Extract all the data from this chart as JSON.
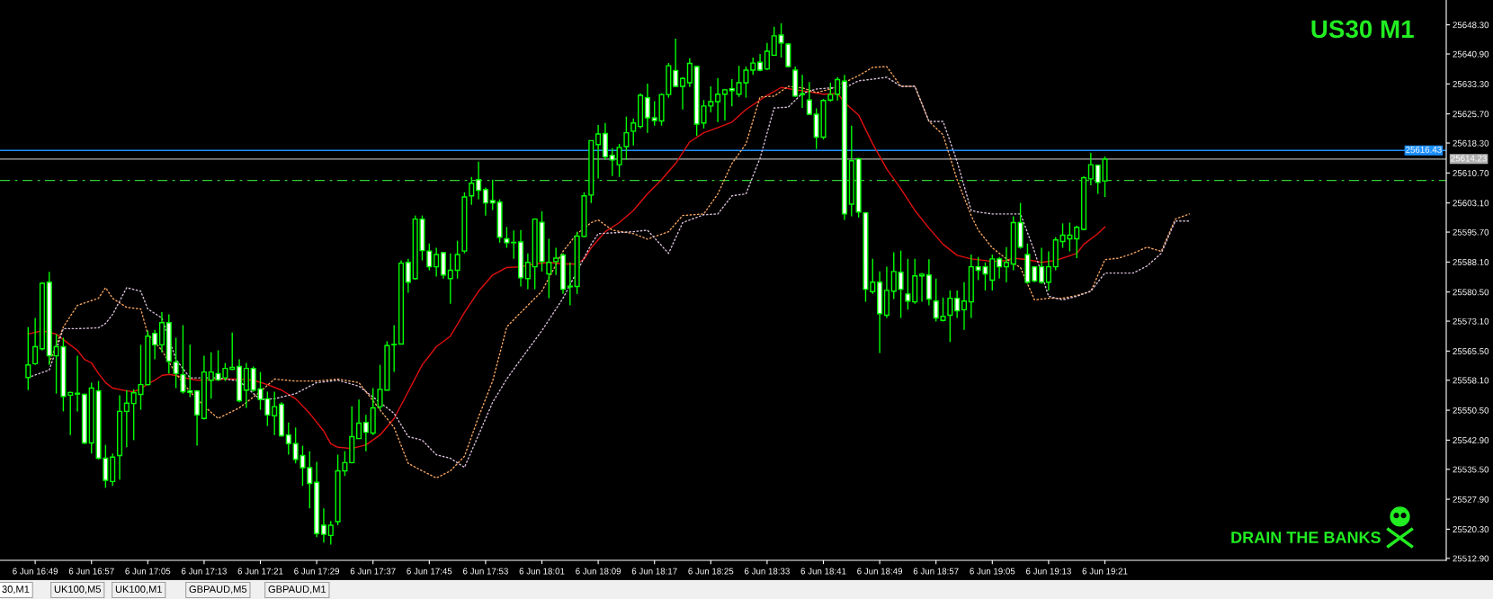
{
  "chart_data": {
    "type": "candlestick",
    "title": "US30 M1",
    "annotations": [
      "DRAIN THE BANKS",
      "30,M1",
      "UK100,M5",
      "UK100,M1",
      "GBPAUD,M5",
      "GBPAUD,M1"
    ],
    "categories": [
      null,
      "6 Jun 16:49",
      null,
      null,
      null,
      null,
      null,
      null,
      null,
      "6 Jun 16:57",
      null,
      null,
      null,
      null,
      null,
      null,
      null,
      "6 Jun 17:05",
      null,
      null,
      null,
      null,
      null,
      null,
      null,
      "6 Jun 17:13",
      null,
      null,
      null,
      null,
      null,
      null,
      null,
      "6 Jun 17:21",
      null,
      null,
      null,
      null,
      null,
      null,
      null,
      "6 Jun 17:29",
      null,
      null,
      null,
      null,
      null,
      null,
      null,
      "6 Jun 17:37",
      null,
      null,
      null,
      null,
      null,
      null,
      null,
      "6 Jun 17:45",
      null,
      null,
      null,
      null,
      null,
      null,
      null,
      "6 Jun 17:53",
      null,
      null,
      null,
      null,
      null,
      null,
      null,
      "6 Jun 18:01",
      null,
      null,
      null,
      null,
      null,
      null,
      null,
      "6 Jun 18:09",
      null,
      null,
      null,
      null,
      null,
      null,
      null,
      "6 Jun 18:17",
      null,
      null,
      null,
      null,
      null,
      null,
      null,
      "6 Jun 18:25",
      null,
      null,
      null,
      null,
      null,
      null,
      null,
      "6 Jun 18:33",
      null,
      null,
      null,
      null,
      null,
      null,
      null,
      "6 Jun 18:41",
      null,
      null,
      null,
      null,
      null,
      null,
      null,
      "6 Jun 18:49",
      null,
      null,
      null,
      null,
      null,
      null,
      null,
      "6 Jun 18:57",
      null,
      null,
      null,
      null,
      null,
      null,
      null,
      "6 Jun 19:05",
      null,
      null,
      null,
      null,
      null,
      null,
      null,
      "6 Jun 19:13",
      null,
      null,
      null,
      null,
      null,
      null,
      null,
      "6 Jun 19:21",
      null,
      null,
      null,
      null,
      null,
      null,
      null,
      null,
      null,
      null,
      null,
      null,
      null,
      null,
      null,
      null,
      null,
      null,
      null,
      null,
      null,
      null,
      null,
      null,
      null,
      null,
      null,
      null,
      null,
      null,
      null,
      null,
      null,
      null,
      null,
      null,
      null,
      null,
      null,
      null,
      null,
      null,
      null,
      null,
      null,
      null,
      null,
      null
    ],
    "color": "#00ff00",
    "ohlc": [
      [
        25558.8,
        25571.6,
        25555.6,
        25562.0
      ],
      [
        25562.3,
        25573.9,
        25562.0,
        25566.6
      ],
      [
        25566.1,
        25583.0,
        25565.7,
        25582.7
      ],
      [
        25583.0,
        25585.6,
        25562.0,
        25564.3
      ],
      [
        25564.3,
        25569.8,
        25554.7,
        25566.6
      ],
      [
        25566.6,
        25568.9,
        25550.2,
        25554.0
      ],
      [
        25554.3,
        25555.2,
        25544.2,
        25555.0
      ],
      [
        25554.8,
        25564.3,
        25550.2,
        25554.6
      ],
      [
        25554.5,
        25554.7,
        25541.9,
        25542.2
      ],
      [
        25542.2,
        25557.5,
        25539.5,
        25556.1
      ],
      [
        25555.4,
        25557.9,
        25538.0,
        25538.3
      ],
      [
        25538.3,
        25541.7,
        25530.8,
        25532.7
      ],
      [
        25532.4,
        25539.5,
        25531.3,
        25538.6
      ],
      [
        25539.0,
        25554.3,
        25532.9,
        25550.2
      ],
      [
        25550.2,
        25555.6,
        25541.1,
        25552.3
      ],
      [
        25552.2,
        25555.8,
        25542.9,
        25554.9
      ],
      [
        25554.5,
        25567.1,
        25550.6,
        25557.0
      ],
      [
        25557.0,
        25570.7,
        25556.8,
        25569.3
      ],
      [
        25570.0,
        25570.9,
        25563.4,
        25567.1
      ],
      [
        25567.1,
        25575.4,
        25565.2,
        25572.7
      ],
      [
        25572.7,
        25574.8,
        25559.8,
        25562.9
      ],
      [
        25562.7,
        25568.9,
        25556.1,
        25559.8
      ],
      [
        25559.5,
        25572.1,
        25554.7,
        25555.2
      ],
      [
        25555.4,
        25567.1,
        25553.8,
        25555.0
      ],
      [
        25555.4,
        25555.6,
        25541.5,
        25549.3
      ],
      [
        25548.4,
        25564.3,
        25548.1,
        25560.2
      ],
      [
        25558.1,
        25565.2,
        25553.4,
        25560.2
      ],
      [
        25559.8,
        25565.7,
        25557.9,
        25558.2
      ],
      [
        25558.7,
        25562.5,
        25557.9,
        25561.1
      ],
      [
        25560.9,
        25570.2,
        25560.7,
        25561.4
      ],
      [
        25561.6,
        25563.4,
        25552.5,
        25552.9
      ],
      [
        25555.6,
        25562.5,
        25551.1,
        25561.1
      ],
      [
        25561.1,
        25561.6,
        25555.2,
        25555.6
      ],
      [
        25555.9,
        25560.2,
        25550.6,
        25553.2
      ],
      [
        25553.4,
        25555.2,
        25546.5,
        25549.3
      ],
      [
        25549.1,
        25555.2,
        25544.2,
        25551.4
      ],
      [
        25552.0,
        25552.5,
        25543.8,
        25544.0
      ],
      [
        25544.2,
        25547.4,
        25539.2,
        25542.0
      ],
      [
        25542.0,
        25546.1,
        25537.0,
        25538.0
      ],
      [
        25539.0,
        25541.5,
        25531.3,
        25535.9
      ],
      [
        25535.9,
        25540.1,
        25525.6,
        25531.9
      ],
      [
        25532.2,
        25537.4,
        25518.3,
        25519.2
      ],
      [
        25521.3,
        25525.6,
        25516.9,
        25519.0
      ],
      [
        25518.7,
        25522.4,
        25516.4,
        25521.3
      ],
      [
        25522.2,
        25539.2,
        25521.3,
        25535.1
      ],
      [
        25535.1,
        25540.1,
        25533.8,
        25537.2
      ],
      [
        25537.2,
        25551.5,
        25537.0,
        25543.8
      ],
      [
        25543.3,
        25553.2,
        25543.2,
        25547.2
      ],
      [
        25547.4,
        25549.3,
        25540.1,
        25544.9
      ],
      [
        25544.7,
        25556.1,
        25544.2,
        25551.1
      ],
      [
        25551.4,
        25562.0,
        25550.6,
        25555.8
      ],
      [
        25555.6,
        25568.0,
        25555.6,
        25566.9
      ],
      [
        25567.1,
        25572.1,
        25560.2,
        25567.2
      ],
      [
        25567.3,
        25588.5,
        25567.3,
        25587.8
      ],
      [
        25588.0,
        25588.9,
        25580.3,
        25583.0
      ],
      [
        25583.9,
        25599.9,
        25583.6,
        25599.0
      ],
      [
        25599.0,
        25599.9,
        25588.5,
        25591.0
      ],
      [
        25590.9,
        25592.8,
        25586.0,
        25586.9
      ],
      [
        25586.9,
        25591.7,
        25584.4,
        25590.0
      ],
      [
        25590.5,
        25590.5,
        25583.9,
        25584.8
      ],
      [
        25583.9,
        25590.3,
        25577.5,
        25586.0
      ],
      [
        25586.0,
        25593.5,
        25583.9,
        25590.0
      ],
      [
        25590.9,
        25605.8,
        25590.3,
        25604.6
      ],
      [
        25604.9,
        25609.7,
        25602.6,
        25608.1
      ],
      [
        25609.0,
        25613.6,
        25604.0,
        25606.3
      ],
      [
        25606.5,
        25607.0,
        25599.9,
        25603.1
      ],
      [
        25603.7,
        25609.0,
        25601.3,
        25603.1
      ],
      [
        25603.3,
        25604.0,
        25593.0,
        25594.4
      ],
      [
        25594.0,
        25597.0,
        25591.7,
        25593.0
      ],
      [
        25593.1,
        25596.1,
        25588.9,
        25593.0
      ],
      [
        25593.2,
        25596.2,
        25581.9,
        25584.1
      ],
      [
        25583.9,
        25590.3,
        25581.2,
        25588.0
      ],
      [
        25586.9,
        25599.2,
        25581.2,
        25599.0
      ],
      [
        25598.2,
        25601.0,
        25585.7,
        25588.2
      ],
      [
        25585.1,
        25594.0,
        25578.9,
        25588.0
      ],
      [
        25588.2,
        25591.7,
        25584.8,
        25589.1
      ],
      [
        25589.9,
        25590.3,
        25580.0,
        25581.2
      ],
      [
        25582.0,
        25588.0,
        25577.1,
        25581.8
      ],
      [
        25581.9,
        25595.8,
        25580.0,
        25594.7
      ],
      [
        25594.6,
        25605.8,
        25594.4,
        25604.9
      ],
      [
        25605.1,
        25619.0,
        25603.1,
        25618.9
      ],
      [
        25617.9,
        25622.9,
        25609.3,
        25620.6
      ],
      [
        25620.7,
        25623.4,
        25614.0,
        25614.8
      ],
      [
        25615.2,
        25617.0,
        25609.9,
        25614.0
      ],
      [
        25612.8,
        25618.1,
        25609.7,
        25617.2
      ],
      [
        25617.4,
        25625.0,
        25614.0,
        25620.9
      ],
      [
        25621.3,
        25624.5,
        25617.7,
        25623.4
      ],
      [
        25622.5,
        25630.9,
        25622.0,
        25630.4
      ],
      [
        25629.8,
        25633.4,
        25620.9,
        25624.7
      ],
      [
        25624.7,
        25628.9,
        25622.7,
        25624.0
      ],
      [
        25623.9,
        25630.9,
        25622.7,
        25630.6
      ],
      [
        25630.6,
        25638.6,
        25629.8,
        25637.9
      ],
      [
        25636.7,
        25644.8,
        25632.5,
        25632.7
      ],
      [
        25632.7,
        25635.0,
        25626.8,
        25634.7
      ],
      [
        25633.6,
        25639.8,
        25632.5,
        25638.5
      ],
      [
        25637.7,
        25637.9,
        25620.1,
        25623.1
      ],
      [
        25623.4,
        25629.2,
        25622.0,
        25627.7
      ],
      [
        25627.7,
        25632.7,
        25626.1,
        25628.8
      ],
      [
        25628.8,
        25634.8,
        25623.6,
        25630.7
      ],
      [
        25630.7,
        25632.0,
        25624.0,
        25631.8
      ],
      [
        25632.1,
        25634.5,
        25627.6,
        25631.6
      ],
      [
        25630.7,
        25637.9,
        25630.0,
        25633.6
      ],
      [
        25633.6,
        25637.7,
        25629.8,
        25636.8
      ],
      [
        25636.8,
        25640.0,
        25635.6,
        25638.6
      ],
      [
        25638.8,
        25640.9,
        25636.5,
        25636.8
      ],
      [
        25637.1,
        25643.7,
        25636.8,
        25641.6
      ],
      [
        25640.6,
        25647.8,
        25640.5,
        25645.5
      ],
      [
        25645.7,
        25648.7,
        25640.0,
        25643.7
      ],
      [
        25643.4,
        25643.7,
        25637.5,
        25637.7
      ],
      [
        25636.8,
        25637.7,
        25630.0,
        25630.2
      ],
      [
        25630.8,
        25635.6,
        25627.2,
        25630.6
      ],
      [
        25629.2,
        25633.8,
        25625.4,
        25625.6
      ],
      [
        25625.6,
        25627.1,
        25616.8,
        25619.8
      ],
      [
        25619.8,
        25629.5,
        25619.2,
        25629.1
      ],
      [
        25629.2,
        25633.6,
        25628.8,
        25630.6
      ],
      [
        25630.7,
        25635.0,
        25629.1,
        25634.4
      ],
      [
        25634.0,
        25635.6,
        25598.8,
        25600.3
      ],
      [
        25602.8,
        25622.7,
        25599.7,
        25613.8
      ],
      [
        25614.3,
        25614.5,
        25599.4,
        25600.8
      ],
      [
        25600.6,
        25600.8,
        25578.0,
        25581.2
      ],
      [
        25580.6,
        25588.9,
        25580.0,
        25583.0
      ],
      [
        25583.0,
        25585.7,
        25565.0,
        25575.0
      ],
      [
        25574.6,
        25586.9,
        25573.9,
        25580.9
      ],
      [
        25580.7,
        25590.6,
        25578.7,
        25585.7
      ],
      [
        25585.5,
        25591.0,
        25573.9,
        25581.2
      ],
      [
        25580.0,
        25588.9,
        25576.0,
        25578.2
      ],
      [
        25578.0,
        25588.9,
        25577.5,
        25584.6
      ],
      [
        25584.6,
        25585.3,
        25578.0,
        25585.0
      ],
      [
        25584.8,
        25588.8,
        25577.1,
        25578.7
      ],
      [
        25578.2,
        25583.9,
        25573.0,
        25573.9
      ],
      [
        25573.3,
        25579.1,
        25573.0,
        25574.3
      ],
      [
        25574.6,
        25580.9,
        25567.8,
        25578.9
      ],
      [
        25578.9,
        25580.9,
        25573.9,
        25575.7
      ],
      [
        25576.0,
        25583.0,
        25570.9,
        25578.2
      ],
      [
        25578.0,
        25590.0,
        25573.9,
        25586.9
      ],
      [
        25586.9,
        25589.4,
        25583.5,
        25586.0
      ],
      [
        25586.9,
        25588.0,
        25580.9,
        25585.1
      ],
      [
        25583.5,
        25590.0,
        25580.9,
        25588.9
      ],
      [
        25588.9,
        25589.4,
        25583.9,
        25586.9
      ],
      [
        25586.9,
        25591.9,
        25583.0,
        25588.0
      ],
      [
        25587.6,
        25599.7,
        25586.0,
        25598.1
      ],
      [
        25598.1,
        25603.1,
        25591.5,
        25591.9
      ],
      [
        25590.0,
        25592.8,
        25582.6,
        25583.0
      ],
      [
        25586.9,
        25587.1,
        25583.0,
        25583.3
      ],
      [
        25586.9,
        25591.7,
        25582.6,
        25583.0
      ],
      [
        25583.0,
        25590.8,
        25580.9,
        25586.9
      ],
      [
        25586.9,
        25594.4,
        25586.0,
        25593.7
      ],
      [
        25593.3,
        25597.9,
        25591.7,
        25594.9
      ],
      [
        25594.0,
        25598.1,
        25590.8,
        25594.9
      ],
      [
        25594.0,
        25597.3,
        25589.1,
        25596.9
      ],
      [
        25596.4,
        25609.9,
        25596.2,
        25609.5
      ],
      [
        25609.2,
        25615.8,
        25607.6,
        25612.8
      ],
      [
        25612.7,
        25612.8,
        25605.4,
        25608.3
      ],
      [
        25608.7,
        25614.9,
        25604.6,
        25614.2
      ],
      null,
      null,
      null,
      null,
      null,
      null,
      null,
      null,
      null,
      null,
      null,
      null,
      null,
      null,
      null,
      null,
      null,
      null,
      null,
      null,
      null,
      null,
      null,
      null,
      null,
      null,
      null,
      null,
      null,
      null,
      null,
      null,
      null,
      null,
      null,
      null,
      null,
      null,
      null,
      null,
      null,
      null,
      null,
      null,
      null,
      null,
      null,
      null
    ],
    "series": [
      {
        "type": "line",
        "color": "#e01010",
        "line_style": "solid",
        "values": [
          25569.8,
          null,
          25570.7,
          null,
          25569.8,
          25568.4,
          null,
          25565.7,
          25563.4,
          25562.5,
          25559.8,
          25557.5,
          25556.1,
          null,
          25555.4,
          25555.2,
          25555.9,
          25557.2,
          25558.1,
          25559.3,
          25559.6,
          25559.3,
          25558.8,
          null,
          25558.1,
          null,
          25558.2,
          null,
          25558.4,
          null,
          25558.4,
          null,
          25558.1,
          null,
          25557.0,
          null,
          25555.6,
          null,
          25553.4,
          null,
          25549.7,
          null,
          25545.2,
          25542.0,
          25541.1,
          null,
          25540.8,
          null,
          25541.7,
          null,
          25544.2,
          null,
          25548.4,
          null,
          25555.2,
          null,
          25562.0,
          null,
          25566.6,
          null,
          25569.3,
          null,
          25575.3,
          null,
          25580.7,
          null,
          25584.8,
          null,
          25586.7,
          null,
          25586.9,
          null,
          25587.6,
          null,
          25588.0,
          null,
          25587.6,
          null,
          25587.6,
          25588.9,
          25591.7,
          null,
          25595.8,
          null,
          25598.1,
          null,
          25601.2,
          null,
          25605.4,
          null,
          25609.0,
          null,
          25613.1,
          null,
          25618.6,
          null,
          25620.9,
          null,
          25622.2,
          null,
          25623.6,
          null,
          25626.8,
          null,
          null,
          25630.4,
          null,
          25632.4,
          null,
          null,
          null,
          25631.3,
          null,
          25630.7,
          null,
          25630.9,
          25628.6,
          null,
          25625.4,
          null,
          25618.1,
          null,
          25611.7,
          null,
          25606.7,
          null,
          25601.2,
          null,
          25596.7,
          null,
          25592.6,
          null,
          25589.8,
          null,
          25588.9,
          null,
          25588.5,
          25588.2,
          null,
          25588.5,
          25589.1,
          null,
          25588.7,
          null,
          25588.0,
          null,
          25588.5,
          null,
          25589.7,
          25590.3,
          25592.6,
          null,
          25595.3,
          25597.0,
          null,
          null,
          null,
          null,
          null,
          null,
          null,
          null,
          null,
          null,
          null,
          null,
          null,
          null,
          null,
          null,
          null,
          null,
          null,
          null,
          null,
          null,
          null,
          null,
          null,
          null,
          null,
          null,
          null,
          null,
          null,
          null,
          null,
          null,
          null,
          null,
          null,
          null,
          null,
          null,
          null,
          null,
          null,
          null,
          null,
          null,
          null,
          null
        ]
      },
      {
        "type": "line",
        "color": "#f4a460",
        "line_style": "dotted",
        "values": [
          null,
          null,
          null,
          25562.5,
          null,
          25571.6,
          null,
          25577.1,
          null,
          null,
          25578.9,
          25581.6,
          25578.9,
          null,
          25576.6,
          null,
          25576.2,
          25569.8,
          null,
          25565.7,
          null,
          25559.8,
          null,
          25555.2,
          null,
          25551.5,
          null,
          25548.4,
          null,
          null,
          25551.1,
          null,
          null,
          25555.2,
          null,
          25558.4,
          null,
          null,
          25557.9,
          null,
          null,
          25557.9,
          null,
          null,
          25558.4,
          null,
          null,
          25557.5,
          null,
          null,
          25550.6,
          null,
          25546.1,
          null,
          25537.0,
          null,
          25535.1,
          null,
          25533.3,
          null,
          25535.1,
          null,
          25538.8,
          null,
          25548.8,
          null,
          25557.9,
          null,
          25571.6,
          null,
          25575.3,
          null,
          null,
          25580.7,
          null,
          null,
          25590.8,
          null,
          25595.3,
          null,
          25598.1,
          25598.8,
          null,
          25596.2,
          null,
          null,
          25595.3,
          null,
          25593.9,
          null,
          null,
          25595.8,
          null,
          25599.9,
          null,
          null,
          25600.3,
          null,
          25605.4,
          null,
          25613.1,
          null,
          25618.1,
          null,
          25630.0,
          null,
          25630.2,
          null,
          25632.7,
          null,
          25632.3,
          null,
          25631.1,
          null,
          25632.0,
          null,
          null,
          null,
          25635.4,
          null,
          25637.5,
          null,
          25637.7,
          null,
          25632.7,
          null,
          25632.7,
          null,
          25623.8,
          null,
          25620.4,
          null,
          25609.0,
          null,
          25599.9,
          25596.2,
          null,
          25591.7,
          null,
          25588.9,
          null,
          25586.7,
          null,
          25578.5,
          null,
          25578.9,
          null,
          25578.9,
          null,
          25579.6,
          null,
          25580.7,
          null,
          25588.7,
          null,
          25589.1,
          null,
          25590.3,
          null,
          25591.9,
          null,
          25590.8,
          null,
          25599.0,
          null,
          25600.3,
          null,
          null,
          null,
          null,
          null,
          null,
          null,
          null,
          null,
          null,
          null,
          null,
          null,
          null,
          null,
          null,
          null,
          null,
          null,
          null,
          null,
          null,
          null,
          null,
          null,
          null,
          null,
          null,
          null,
          null,
          null,
          null,
          null,
          null,
          null,
          null
        ]
      },
      {
        "type": "line",
        "color": "#d8bfd8",
        "line_style": "dotted",
        "values": [
          25558.8,
          null,
          null,
          25560.7,
          null,
          25571.2,
          null,
          25571.2,
          null,
          null,
          25571.4,
          25572.5,
          25574.8,
          null,
          25581.6,
          null,
          25580.7,
          25576.2,
          null,
          25573.9,
          null,
          25563.4,
          null,
          25558.7,
          null,
          25558.7,
          null,
          25558.7,
          null,
          null,
          25557.9,
          null,
          null,
          25553.2,
          null,
          25553.4,
          null,
          null,
          25554.7,
          null,
          null,
          25557.5,
          null,
          null,
          25558.1,
          null,
          null,
          25556.6,
          null,
          null,
          null,
          null,
          25549.7,
          null,
          25543.8,
          null,
          25542.9,
          null,
          25539.2,
          null,
          25538.3,
          null,
          25536.0,
          null,
          25544.2,
          null,
          25552.5,
          null,
          25558.4,
          null,
          25563.4,
          null,
          null,
          25570.7,
          null,
          null,
          25578.9,
          null,
          null,
          null,
          25592.6,
          25595.3,
          null,
          25595.5,
          null,
          null,
          25595.8,
          null,
          25596.2,
          null,
          null,
          25590.3,
          null,
          25598.1,
          null,
          null,
          25600.1,
          null,
          25600.3,
          null,
          25604.9,
          null,
          25605.4,
          null,
          25614.5,
          null,
          25627.2,
          null,
          25627.4,
          null,
          25630.9,
          null,
          25632.0,
          null,
          25632.3,
          null,
          25632.3,
          null,
          25634.1,
          null,
          25634.5,
          null,
          25635.0,
          null,
          25632.7,
          null,
          25632.7,
          null,
          25623.8,
          null,
          25623.8,
          null,
          25613.6,
          null,
          25601.2,
          25600.8,
          null,
          25600.3,
          null,
          25600.3,
          null,
          25600.3,
          null,
          25590.8,
          null,
          25579.4,
          null,
          25578.5,
          null,
          25579.4,
          null,
          25580.7,
          null,
          25585.3,
          null,
          25585.3,
          null,
          25585.3,
          null,
          25587.1,
          null,
          25590.3,
          null,
          25598.5,
          null,
          25598.5,
          null,
          null,
          null,
          null,
          null,
          null,
          null,
          null,
          null,
          null,
          null,
          null,
          null,
          null,
          null,
          null,
          null,
          null,
          null,
          null,
          null,
          null,
          null,
          null,
          null,
          null,
          null,
          null,
          null,
          null,
          null,
          null,
          null,
          null,
          null,
          null
        ]
      }
    ],
    "ylim": [
      25512.4,
      25654.6
    ],
    "yticks": [
      {
        "value": 25648.3,
        "label": "25648.30"
      },
      {
        "value": 25640.9,
        "label": "25640.90"
      },
      {
        "value": 25633.3,
        "label": "25633.30"
      },
      {
        "value": 25625.7,
        "label": "25625.70"
      },
      {
        "value": 25618.3,
        "label": "25618.30"
      },
      {
        "value": 25610.7,
        "label": "25610.70"
      },
      {
        "value": 25603.1,
        "label": "25603.10"
      },
      {
        "value": 25595.7,
        "label": "25595.70"
      },
      {
        "value": 25588.1,
        "label": "25588.10"
      },
      {
        "value": 25580.5,
        "label": "25580.50"
      },
      {
        "value": 25573.1,
        "label": "25573.10"
      },
      {
        "value": 25565.5,
        "label": "25565.50"
      },
      {
        "value": 25558.1,
        "label": "25558.10"
      },
      {
        "value": 25550.5,
        "label": "25550.50"
      },
      {
        "value": 25542.9,
        "label": "25542.90"
      },
      {
        "value": 25535.5,
        "label": "25535.50"
      },
      {
        "value": 25527.9,
        "label": "25527.90"
      },
      {
        "value": 25520.3,
        "label": "25520.30"
      },
      {
        "value": 25512.9,
        "label": "25512.90"
      }
    ],
    "ref_lines": [
      {
        "axis": "y",
        "value": 25616.43,
        "label": "25616.43",
        "color": "#1e90ff",
        "line_style": "solid"
      },
      {
        "axis": "y",
        "value": 25614.23,
        "label": "25614.23",
        "color": "#b0b0b0",
        "line_style": "solid"
      },
      {
        "axis": "y",
        "value": 25608.8,
        "color": "#32cd32",
        "line_style": "dashdot"
      }
    ]
  }
}
